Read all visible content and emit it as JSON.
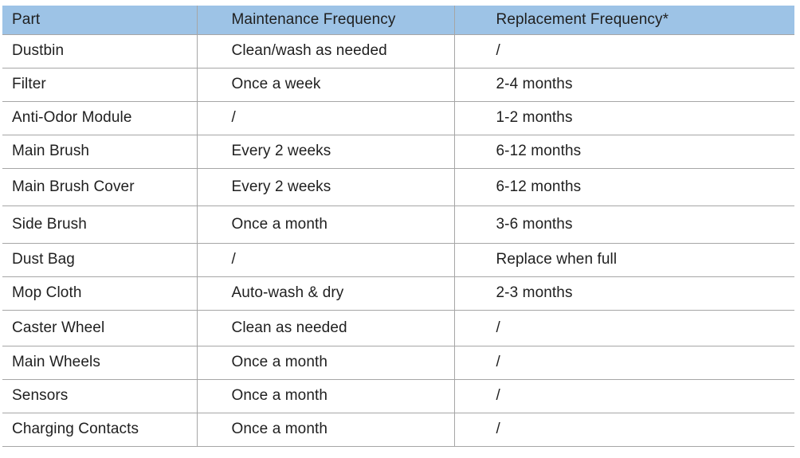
{
  "table": {
    "headers": [
      "Part",
      "Maintenance Frequency",
      "Replacement Frequency*"
    ],
    "rows": [
      {
        "part": "Dustbin",
        "maintenance": "Clean/wash as needed",
        "replacement": "/"
      },
      {
        "part": "Filter",
        "maintenance": "Once a week",
        "replacement": "2-4 months"
      },
      {
        "part": "Anti-Odor Module",
        "maintenance": "/",
        "replacement": "1-2 months"
      },
      {
        "part": "Main Brush",
        "maintenance": "Every 2 weeks",
        "replacement": "6-12 months"
      },
      {
        "part": "Main Brush Cover",
        "maintenance": "Every 2 weeks",
        "replacement": "6-12 months"
      },
      {
        "part": "Side Brush",
        "maintenance": "Once a month",
        "replacement": "3-6 months"
      },
      {
        "part": "Dust Bag",
        "maintenance": "/",
        "replacement": "Replace when full"
      },
      {
        "part": "Mop Cloth",
        "maintenance": "Auto-wash & dry",
        "replacement": "2-3 months"
      },
      {
        "part": "Caster Wheel",
        "maintenance": "Clean as needed",
        "replacement": "/"
      },
      {
        "part": "Main Wheels",
        "maintenance": "Once a month",
        "replacement": "/"
      },
      {
        "part": "Sensors",
        "maintenance": "Once a month",
        "replacement": "/"
      },
      {
        "part": "Charging Contacts",
        "maintenance": "Once a month",
        "replacement": "/"
      }
    ]
  },
  "colors": {
    "header_bg": "#9dc3e6",
    "border": "#a6a6a6",
    "text": "#1f1f1f",
    "row_bg": "#ffffff"
  }
}
